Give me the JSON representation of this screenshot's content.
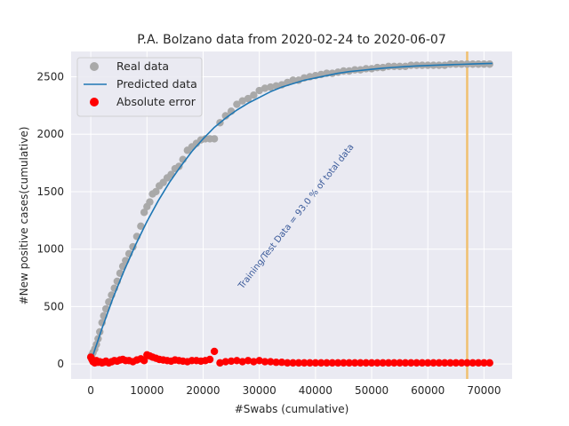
{
  "chart_data": {
    "type": "scatter",
    "title": "P.A. Bolzano data  from 2020-02-24 to 2020-06-07",
    "xlabel": "#Swabs (cumulative)",
    "ylabel": "#New positive cases(cumulative)",
    "xlim": [
      -3500,
      75000
    ],
    "ylim": [
      -130,
      2720
    ],
    "xticks": [
      0,
      10000,
      20000,
      30000,
      40000,
      50000,
      60000,
      70000
    ],
    "yticks": [
      0,
      500,
      1000,
      1500,
      2000,
      2500
    ],
    "grid": true,
    "legend_position": "top-left",
    "legend": [
      "Real data",
      "Predicted data",
      "Absolute error"
    ],
    "colors": {
      "real": "#a9a9a9",
      "predicted": "#1f77b4",
      "error": "#ff0000",
      "split_line": "#f0c070",
      "background": "#eaeaf2",
      "grid": "#ffffff"
    },
    "split_x": 67000,
    "annotation": "Training/Test Data = 93.0 % of total data",
    "annotation_position": [
      27000,
      650
    ],
    "series": [
      {
        "name": "Real data",
        "kind": "scatter",
        "x": [
          0,
          200,
          400,
          700,
          1000,
          1300,
          1600,
          2000,
          2300,
          2700,
          3200,
          3700,
          4200,
          4700,
          5200,
          5700,
          6200,
          6800,
          7500,
          8200,
          8900,
          9500,
          10000,
          10500,
          11000,
          11600,
          12200,
          12900,
          13600,
          14300,
          15000,
          15700,
          16400,
          17200,
          18000,
          18800,
          19600,
          20400,
          21200,
          22000,
          23000,
          24000,
          25000,
          26000,
          27000,
          28000,
          29000,
          30000,
          31000,
          32000,
          33000,
          34000,
          35000,
          36000,
          37000,
          38000,
          39000,
          40000,
          41000,
          42000,
          43000,
          44000,
          45000,
          46000,
          47000,
          48000,
          49000,
          50000,
          51000,
          52000,
          53000,
          54000,
          55000,
          56000,
          57000,
          58000,
          59000,
          60000,
          61000,
          62000,
          63000,
          64000,
          65000,
          66000,
          67000,
          68000,
          69000,
          70000,
          71000
        ],
        "y": [
          60,
          80,
          100,
          130,
          170,
          220,
          280,
          360,
          420,
          480,
          540,
          600,
          660,
          720,
          790,
          850,
          900,
          960,
          1020,
          1110,
          1200,
          1320,
          1370,
          1410,
          1480,
          1500,
          1550,
          1580,
          1620,
          1650,
          1700,
          1720,
          1780,
          1860,
          1890,
          1920,
          1950,
          1960,
          1960,
          1960,
          2100,
          2160,
          2200,
          2260,
          2290,
          2310,
          2340,
          2380,
          2400,
          2410,
          2420,
          2430,
          2450,
          2470,
          2470,
          2490,
          2500,
          2510,
          2520,
          2530,
          2530,
          2540,
          2550,
          2550,
          2560,
          2560,
          2570,
          2570,
          2580,
          2580,
          2590,
          2590,
          2590,
          2590,
          2600,
          2600,
          2600,
          2600,
          2600,
          2600,
          2600,
          2610,
          2610,
          2610,
          2610,
          2610,
          2610,
          2610,
          2610
        ]
      },
      {
        "name": "Predicted data",
        "kind": "line",
        "x": [
          0,
          2000,
          4000,
          6000,
          8000,
          10000,
          12000,
          14000,
          16000,
          18000,
          20000,
          22000,
          24000,
          26000,
          28000,
          30000,
          32000,
          34000,
          36000,
          38000,
          40000,
          42000,
          44000,
          46000,
          48000,
          50000,
          52000,
          54000,
          56000,
          58000,
          60000,
          62000,
          64000,
          66000,
          68000,
          70000,
          71500
        ],
        "y": [
          20,
          310,
          580,
          820,
          1040,
          1240,
          1420,
          1580,
          1720,
          1850,
          1960,
          2060,
          2140,
          2210,
          2270,
          2320,
          2370,
          2410,
          2440,
          2470,
          2490,
          2510,
          2530,
          2545,
          2555,
          2565,
          2575,
          2582,
          2588,
          2594,
          2598,
          2602,
          2605,
          2608,
          2611,
          2614,
          2616
        ]
      },
      {
        "name": "Absolute error",
        "kind": "scatter",
        "x": [
          0,
          200,
          400,
          700,
          1000,
          1300,
          1600,
          2000,
          2300,
          2700,
          3200,
          3700,
          4200,
          4700,
          5200,
          5700,
          6200,
          6800,
          7500,
          8200,
          8900,
          9500,
          10000,
          10500,
          11000,
          11600,
          12200,
          12900,
          13600,
          14300,
          15000,
          15700,
          16400,
          17200,
          18000,
          18800,
          19600,
          20400,
          21200,
          22000,
          23000,
          24000,
          25000,
          26000,
          27000,
          28000,
          29000,
          30000,
          31000,
          32000,
          33000,
          34000,
          35000,
          36000,
          37000,
          38000,
          39000,
          40000,
          41000,
          42000,
          43000,
          44000,
          45000,
          46000,
          47000,
          48000,
          49000,
          50000,
          51000,
          52000,
          53000,
          54000,
          55000,
          56000,
          57000,
          58000,
          59000,
          60000,
          61000,
          62000,
          63000,
          64000,
          65000,
          66000,
          67000,
          68000,
          69000,
          70000,
          71000
        ],
        "y": [
          60,
          40,
          20,
          10,
          30,
          15,
          20,
          10,
          15,
          25,
          10,
          20,
          30,
          25,
          35,
          40,
          30,
          30,
          20,
          35,
          45,
          30,
          80,
          70,
          60,
          50,
          40,
          35,
          30,
          25,
          35,
          30,
          25,
          20,
          30,
          30,
          25,
          30,
          40,
          110,
          10,
          20,
          25,
          30,
          20,
          30,
          20,
          30,
          20,
          20,
          15,
          15,
          10,
          10,
          10,
          10,
          10,
          10,
          10,
          10,
          10,
          10,
          10,
          10,
          10,
          10,
          10,
          10,
          10,
          10,
          10,
          10,
          10,
          10,
          10,
          10,
          10,
          10,
          10,
          10,
          10,
          10,
          10,
          10,
          10,
          10,
          10,
          10,
          10
        ]
      }
    ]
  }
}
